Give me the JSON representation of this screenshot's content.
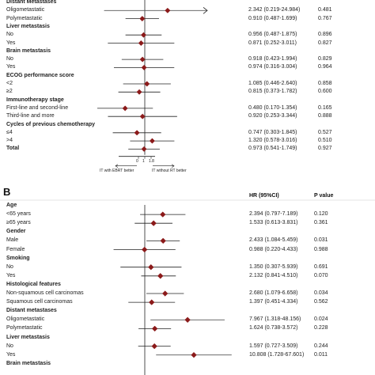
{
  "chart_data": [
    {
      "type": "forest",
      "panel": "",
      "xaxis": {
        "ticks": [
          "0",
          "1",
          "1.8"
        ],
        "favors_left": "IT with EBRT better",
        "favors_right": "IT without RT better",
        "null_value": 1,
        "scale": "log"
      },
      "rows": [
        {
          "label": "Distant Metastases",
          "header": true
        },
        {
          "label": "Oligometastatic",
          "hr": 2.342,
          "lo": 0.219,
          "hi": 24.984,
          "text": "2.342 (0.219-24.984)",
          "p": "0.481",
          "arrow": true
        },
        {
          "label": "Polymetastatic",
          "hr": 0.91,
          "lo": 0.487,
          "hi": 1.699,
          "text": "0.910 (0.487-1.699)",
          "p": "0.767"
        },
        {
          "label": "Liver metastasis",
          "header": true
        },
        {
          "label": "No",
          "hr": 0.956,
          "lo": 0.487,
          "hi": 1.875,
          "text": "0.956 (0.487-1.875)",
          "p": "0.896"
        },
        {
          "label": "Yes",
          "hr": 0.871,
          "lo": 0.252,
          "hi": 3.011,
          "text": "0.871 (0.252-3.011)",
          "p": "0.827"
        },
        {
          "label": "Brain metastasis",
          "header": true
        },
        {
          "label": "No",
          "hr": 0.918,
          "lo": 0.423,
          "hi": 1.994,
          "text": "0.918 (0.423-1.994)",
          "p": "0.829"
        },
        {
          "label": "Yes",
          "hr": 0.974,
          "lo": 0.316,
          "hi": 3.004,
          "text": "0.974 (0.316-3.004)",
          "p": "0.964"
        },
        {
          "label": "ECOG performance score",
          "header": true
        },
        {
          "label": "<2",
          "hr": 1.085,
          "lo": 0.446,
          "hi": 2.64,
          "text": "1.085 (0.446-2.640)",
          "p": "0.858"
        },
        {
          "label": "≥2",
          "hr": 0.815,
          "lo": 0.373,
          "hi": 1.782,
          "text": "0.815 (0.373-1.782)",
          "p": "0.600"
        },
        {
          "label": "Immunotherapy stage",
          "header": true
        },
        {
          "label": "First-line and second-line",
          "hr": 0.48,
          "lo": 0.17,
          "hi": 1.354,
          "text": "0.480 (0.170-1.354)",
          "p": "0.165"
        },
        {
          "label": "Third-line and more",
          "hr": 0.92,
          "lo": 0.253,
          "hi": 3.344,
          "text": "0.920 (0.253-3.344)",
          "p": "0.888"
        },
        {
          "label": "Cycles of previous chemotherapy",
          "header": true
        },
        {
          "label": "≤4",
          "hr": 0.747,
          "lo": 0.303,
          "hi": 1.845,
          "text": "0.747 (0.303-1.845)",
          "p": "0.527"
        },
        {
          "label": ">4",
          "hr": 1.32,
          "lo": 0.578,
          "hi": 3.016,
          "text": "1.320 (0.578-3.016)",
          "p": "0.510"
        },
        {
          "label": "Total",
          "header": true,
          "hr": 0.973,
          "lo": 0.541,
          "hi": 1.749,
          "text": "0.973 (0.541-1.749)",
          "p": "0.927"
        }
      ]
    },
    {
      "type": "forest",
      "panel": "B",
      "columns": {
        "hr": "HR (95%CI)",
        "p": "P value"
      },
      "rows": [
        {
          "label": "Age",
          "header": true
        },
        {
          "label": "<65 years",
          "hr": 2.394,
          "lo": 0.797,
          "hi": 7.189,
          "text": "2.394 (0.797-7.189)",
          "p": "0.120"
        },
        {
          "label": "≥65 years",
          "hr": 1.533,
          "lo": 0.613,
          "hi": 3.831,
          "text": "1.533 (0.613-3.831)",
          "p": "0.361"
        },
        {
          "label": "Gender",
          "header": true
        },
        {
          "label": "Male",
          "hr": 2.433,
          "hi": 5.459,
          "lo": 1.084,
          "text": "2.433 (1.084-5.459)",
          "p": "0.031"
        },
        {
          "label": "Female",
          "hr": 0.988,
          "lo": 0.22,
          "hi": 4.433,
          "text": "0.988 (0.220-4.433)",
          "p": "0.988"
        },
        {
          "label": "Smoking",
          "header": true
        },
        {
          "label": "No",
          "hr": 1.35,
          "lo": 0.307,
          "hi": 5.939,
          "text": "1.350 (0.307-5.939)",
          "p": "0.691"
        },
        {
          "label": "Yes",
          "hr": 2.132,
          "lo": 0.841,
          "hi": 4.51,
          "text": "2.132 (0.841-4.510)",
          "p": "0.070"
        },
        {
          "label": "Histological features",
          "header": true
        },
        {
          "label": "Non-squamous cell carcinomas",
          "hr": 2.68,
          "lo": 1.079,
          "hi": 6.658,
          "text": "2.680 (1.079-6.658)",
          "p": "0.034"
        },
        {
          "label": "Squamous cell carcinomas",
          "hr": 1.397,
          "lo": 0.451,
          "hi": 4.334,
          "text": "1.397 (0.451-4.334)",
          "p": "0.562"
        },
        {
          "label": "Distant metastases",
          "header": true
        },
        {
          "label": "Oligometastatic",
          "hr": 7.967,
          "lo": 1.318,
          "hi": 48.156,
          "text": "7.967 (1.318-48.156)",
          "p": "0.024",
          "arrow": true
        },
        {
          "label": "Polymetastatic",
          "hr": 1.624,
          "lo": 0.738,
          "hi": 3.572,
          "text": "1.624 (0.738-3.572)",
          "p": "0.228"
        },
        {
          "label": "Liver metastasis",
          "header": true
        },
        {
          "label": "No",
          "hr": 1.597,
          "lo": 0.727,
          "hi": 3.509,
          "text": "1.597 (0.727-3.509)",
          "p": "0.244"
        },
        {
          "label": "Yes",
          "hr": 10.808,
          "lo": 1.728,
          "hi": 67.601,
          "text": "10.808 (1.728-67.601)",
          "p": "0.011",
          "arrow": true
        },
        {
          "label": "Brain metastasis",
          "header": true
        }
      ]
    }
  ],
  "colors": {
    "marker": "#8b1a1a",
    "line": "#222222",
    "arrow_line": "#555555"
  }
}
